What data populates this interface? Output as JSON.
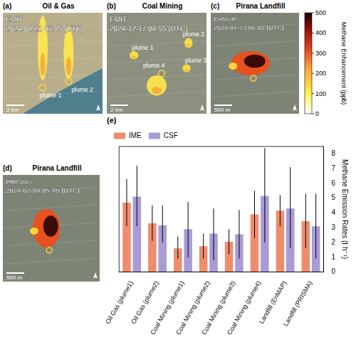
{
  "panels": [
    {
      "letter": "(a)",
      "title": "Oil & Gas",
      "sensor": "EMIT",
      "datetime": "2024-04-21 07:45 (UTC)",
      "plumes": [
        "plume 1",
        "plume 2"
      ],
      "scale_bar": "2 km"
    },
    {
      "letter": "(b)",
      "title": "Coal Mining",
      "sensor": "EMIT",
      "datetime": "2024-12-17 04:55 (UTC)",
      "plumes": [
        "plume 1",
        "plume 2",
        "plume 3",
        "plume 4"
      ],
      "scale_bar": "2 km"
    },
    {
      "letter": "(c)",
      "title": "Pirana Landfill",
      "sensor": "EnMAP",
      "datetime": "2024-01-23 06:08 (UTC)",
      "scale_bar": "500 m"
    },
    {
      "letter": "(d)",
      "title": "Pirana Landfill",
      "sensor": "PRISMA",
      "datetime": "2024-02-04 05:45 (UTC)",
      "scale_bar": "500 m"
    }
  ],
  "colorbar": {
    "label": "Methane Enhancement (ppb)",
    "lim": [
      0,
      500
    ],
    "ticks": [
      0,
      100,
      200,
      300,
      400,
      500
    ]
  },
  "chart_data": {
    "type": "bar",
    "letter": "(e)",
    "y_label": "Methane Emission Rates (t h⁻¹)",
    "categories": [
      "Oil Gas (plume1)",
      "Oil Gas (plume2)",
      "Coal Mining (plume1)",
      "Coal Mining (plume2)",
      "Coal Mining (plume3)",
      "Coal Mining (plume4)",
      "Landfill (EnMAP)",
      "Landfill (PRISMA)"
    ],
    "series": [
      {
        "name": "IME",
        "color": "#f08c6e",
        "values": [
          4.7,
          3.3,
          1.6,
          1.75,
          2.05,
          3.9,
          4.15,
          3.45
        ],
        "error_low": [
          3.1,
          2.1,
          0.9,
          0.9,
          1.2,
          2.3,
          3.1,
          1.6
        ],
        "error_high": [
          6.3,
          4.5,
          2.4,
          2.6,
          2.9,
          5.5,
          5.2,
          5.3
        ]
      },
      {
        "name": "CSF",
        "color": "#a89bd6",
        "values": [
          5.1,
          3.15,
          2.9,
          2.6,
          2.55,
          5.15,
          4.3,
          3.1
        ],
        "error_low": [
          3.1,
          2.0,
          1.0,
          0.8,
          0.9,
          2.0,
          1.6,
          0.9
        ],
        "error_high": [
          7.2,
          4.5,
          4.75,
          4.3,
          4.2,
          8.4,
          7.1,
          5.3
        ]
      }
    ],
    "ylim": [
      0,
      8.5
    ],
    "yticks": [
      0,
      1,
      2,
      3,
      4,
      5,
      6,
      7,
      8
    ],
    "grid": false,
    "legend": "top"
  }
}
